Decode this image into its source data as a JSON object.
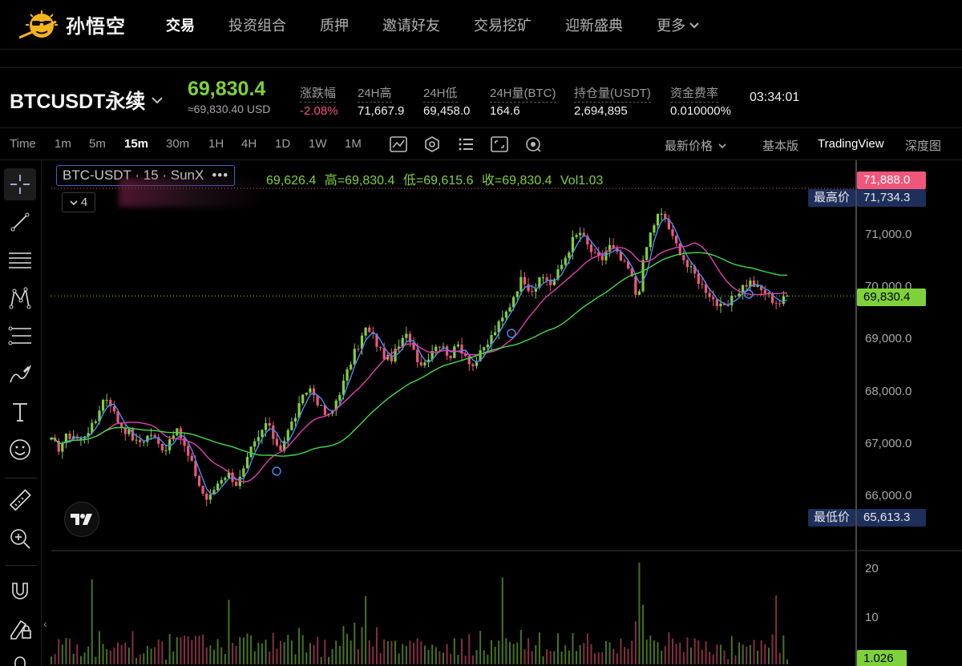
{
  "nav": {
    "logo_text": "孙悟空",
    "items": [
      {
        "label": "交易",
        "active": true
      },
      {
        "label": "投资组合",
        "active": false
      },
      {
        "label": "质押",
        "active": false
      },
      {
        "label": "邀请好友",
        "active": false
      },
      {
        "label": "交易挖矿",
        "active": false
      },
      {
        "label": "迎新盛典",
        "active": false
      }
    ],
    "more_label": "更多"
  },
  "ticker": {
    "symbol": "BTCUSDT永续",
    "last_price": "69,830.4",
    "usd_price": "≈69,830.40 USD",
    "stats": [
      {
        "label": "涨跌幅",
        "value": "-2.08%",
        "tone": "red"
      },
      {
        "label": "24H高",
        "value": "71,667.9",
        "tone": "normal"
      },
      {
        "label": "24H低",
        "value": "69,458.0",
        "tone": "normal"
      },
      {
        "label": "24H量(BTC)",
        "value": "164.6",
        "tone": "normal"
      },
      {
        "label": "持仓量(USDT)",
        "value": "2,694,895",
        "tone": "normal"
      },
      {
        "label": "资金费率",
        "value": "0.010000%",
        "tone": "normal"
      }
    ],
    "countdown": "03:34:01"
  },
  "toolbar": {
    "time_label": "Time",
    "timeframes": [
      "1m",
      "5m",
      "15m",
      "30m",
      "1H",
      "4H",
      "1D",
      "1W",
      "1M"
    ],
    "active_timeframe": "15m",
    "tool_icons": [
      "indicator-icon",
      "settings-icon",
      "layout-icon",
      "fullscreen-icon",
      "snapshot-icon"
    ],
    "price_type": "最新价格",
    "views": [
      {
        "label": "基本版",
        "active": false
      },
      {
        "label": "TradingView",
        "active": true
      },
      {
        "label": "深度图",
        "active": false
      }
    ]
  },
  "left_tools": [
    "crosshair-icon",
    "trend-line-icon",
    "horizontal-lines-icon",
    "pattern-icon",
    "fib-icon",
    "brush-icon",
    "text-icon",
    "emoji-icon",
    "ruler-icon",
    "zoom-in-icon",
    "magnet-icon",
    "lock-edit-icon",
    "lock-icon"
  ],
  "legend": {
    "title": "BTC-USDT · 15 · SunX",
    "open_value": "69,626.4",
    "high_label": "高=",
    "high_value": "69,830.4",
    "low_label": "低=",
    "low_value": "69,615.6",
    "close_label": "收=",
    "close_value": "69,830.4",
    "vol_label": "Vol",
    "vol_value": "1.03",
    "indicator_count": "4"
  },
  "price_axis": {
    "ticks": [
      "71,000.0",
      "70,000.0",
      "69,000.0",
      "68,000.0",
      "67,000.0",
      "66,000.0"
    ],
    "tick_values": [
      71000,
      70000,
      69000,
      68000,
      67000,
      66000
    ],
    "high_tag": "71,888.0",
    "high_tag_value": 71888,
    "last_tag": "69,830.4",
    "last_tag_value": 69830.4,
    "max_label": "最高价",
    "max_value": "71,734.3",
    "max_price": 71734.3,
    "min_label": "最低价",
    "min_value": "65,613.3",
    "min_price": 65613.3
  },
  "volume_axis": {
    "ticks": [
      "20",
      "10"
    ],
    "tick_values": [
      20,
      10
    ],
    "last_tag": "1.026",
    "last_tag_value": 1.026
  },
  "colors": {
    "up": "#7fd13b",
    "down": "#f0567a",
    "ma_short": "#4a8df0",
    "ma_mid": "#e040b0",
    "ma_long": "#3fdc4a",
    "accent_blue": "#3a63c7"
  },
  "chart_data": {
    "type": "candlestick",
    "close_path": [
      67050,
      66920,
      67120,
      67180,
      67050,
      67260,
      67350,
      67820,
      67900,
      67500,
      67310,
      67200,
      67000,
      67100,
      67200,
      66980,
      66920,
      67250,
      67180,
      66800,
      66500,
      66100,
      65900,
      66200,
      66400,
      66420,
      66220,
      66500,
      66900,
      67100,
      67400,
      67150,
      66900,
      67200,
      67500,
      67800,
      68100,
      67900,
      67600,
      67500,
      67900,
      68200,
      68600,
      68900,
      69200,
      69050,
      68800,
      68600,
      68700,
      68950,
      69100,
      68700,
      68500,
      68750,
      68950,
      68800,
      68700,
      68900,
      68700,
      68500,
      68700,
      68900,
      69150,
      69350,
      69600,
      69950,
      70200,
      69950,
      70050,
      70200,
      70050,
      70300,
      70600,
      70900,
      71050,
      70800,
      70600,
      70500,
      70800,
      70650,
      70450,
      70300,
      69750,
      70600,
      71100,
      71400,
      71300,
      70900,
      70700,
      70400,
      70250,
      70050,
      69900,
      69700,
      69550,
      69700,
      69900,
      70050,
      70100,
      69950,
      69900,
      69750,
      69700,
      69830
    ],
    "ma_short_period": 7,
    "ma_mid_period": 25,
    "ma_long_period": 99,
    "price_range": [
      65613.3,
      71888.0
    ],
    "volume_max": 20
  }
}
